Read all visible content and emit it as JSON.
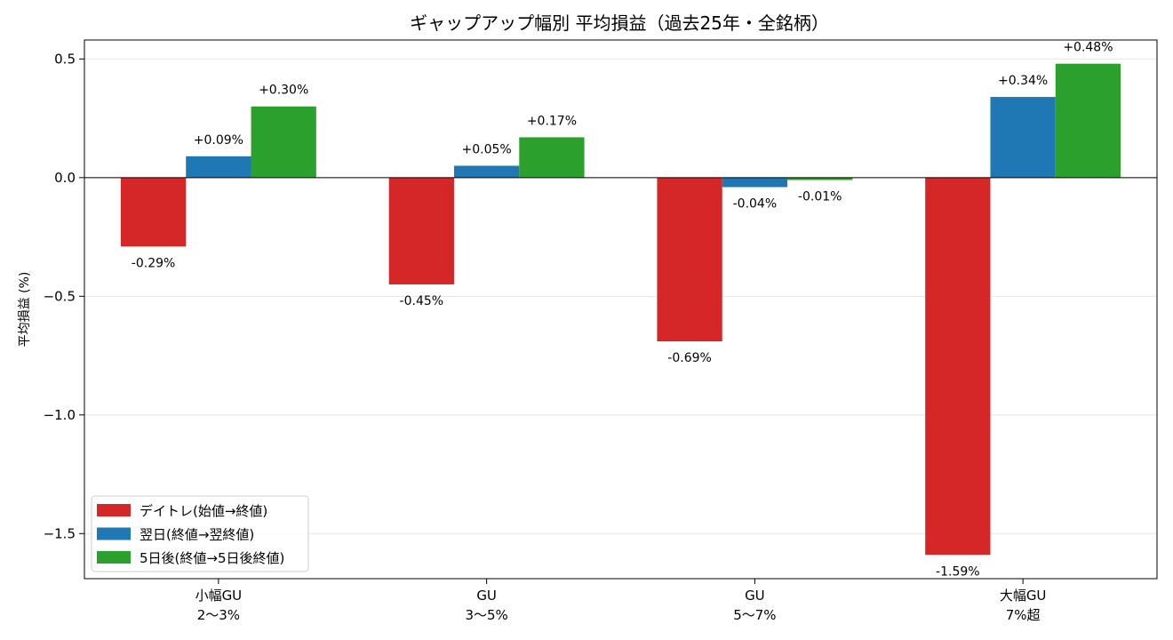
{
  "chart_data": {
    "type": "bar",
    "title": "ギャップアップ幅別 平均損益（過去25年・全銘柄）",
    "xlabel": "",
    "ylabel": "平均損益 (%)",
    "ylim": [
      -1.69,
      0.58
    ],
    "yticks": [
      0.5,
      0.0,
      -0.5,
      -1.0,
      -1.5
    ],
    "ytick_labels": [
      "0.5",
      "0.0",
      "−0.5",
      "−1.0",
      "−1.5"
    ],
    "categories": [
      [
        "小幅GU",
        "2〜3%"
      ],
      [
        "GU",
        "3〜5%"
      ],
      [
        "GU",
        "5〜7%"
      ],
      [
        "大幅GU",
        "7%超"
      ]
    ],
    "series": [
      {
        "name": "デイトレ(始値→終値)",
        "color": "#d62728",
        "values": [
          -0.29,
          -0.45,
          -0.69,
          -1.59
        ],
        "labels": [
          "-0.29%",
          "-0.45%",
          "-0.69%",
          "-1.59%"
        ]
      },
      {
        "name": "翌日(終値→翌終値)",
        "color": "#1f77b4",
        "values": [
          0.09,
          0.05,
          -0.04,
          0.34
        ],
        "labels": [
          "+0.09%",
          "+0.05%",
          "-0.04%",
          "+0.34%"
        ]
      },
      {
        "name": "5日後(終値→5日後終値)",
        "color": "#2ca02c",
        "values": [
          0.3,
          0.17,
          -0.01,
          0.48
        ],
        "labels": [
          "+0.30%",
          "+0.17%",
          "-0.01%",
          "+0.48%"
        ]
      }
    ],
    "grid": "horizontal",
    "zero_line": true,
    "legend_position": "lower-left"
  }
}
